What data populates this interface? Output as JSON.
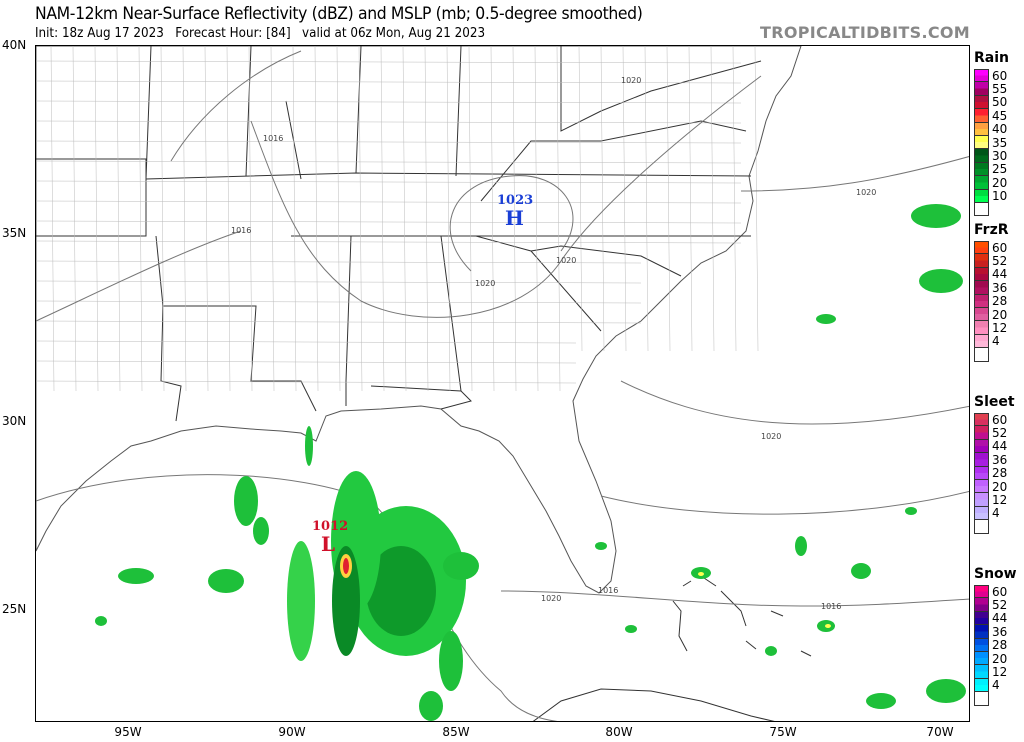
{
  "header": {
    "title": "NAM-12km Near-Surface Reflectivity (dBZ) and MSLP (mb; 0.5-degree smoothed)",
    "subtitle": "Init: 18z Aug 17 2023   Forecast Hour: [84]   valid at 06z Mon, Aug 21 2023",
    "watermark": "TROPICALTIDBITS.COM"
  },
  "axes": {
    "lat_labels": [
      "40N",
      "35N",
      "30N",
      "25N"
    ],
    "lon_labels": [
      "95W",
      "90W",
      "85W",
      "80W",
      "75W",
      "70W"
    ]
  },
  "pressure_centers": [
    {
      "type": "H",
      "value": "1023",
      "color": "#1a3fd6"
    },
    {
      "type": "L",
      "value": "1012",
      "color": "#d0102a"
    }
  ],
  "isobar_labels": [
    "1020",
    "1016",
    "1016",
    "1020",
    "1020",
    "1020",
    "1020",
    "1020",
    "1016",
    "1016"
  ],
  "legends": [
    {
      "name": "Rain",
      "labels": [
        "60",
        "55",
        "50",
        "45",
        "40",
        "35",
        "30",
        "25",
        "20",
        "10",
        ""
      ],
      "colors": [
        [
          "#ff00ff",
          "#e400d8"
        ],
        [
          "#c000a8",
          "#a00060"
        ],
        [
          "#b01040",
          "#d01030"
        ],
        [
          "#ff2030",
          "#ff6030"
        ],
        [
          "#ffa040",
          "#ffc040"
        ],
        [
          "#ffff50",
          "#ffff80"
        ],
        [
          "#005518",
          "#006a1c"
        ],
        [
          "#007a20",
          "#009028"
        ],
        [
          "#00a830",
          "#00c038"
        ],
        [
          "#00dd40",
          "#00ff50"
        ],
        [
          "#ffffff",
          "#ffffff"
        ]
      ]
    },
    {
      "name": "FrzR",
      "labels": [
        "60",
        "52",
        "44",
        "36",
        "28",
        "20",
        "12",
        "4",
        ""
      ],
      "colors": [
        [
          "#ff5000",
          "#ff4010"
        ],
        [
          "#e03010",
          "#c82020"
        ],
        [
          "#b81030",
          "#a80840"
        ],
        [
          "#a00a50",
          "#b01060"
        ],
        [
          "#c02070",
          "#d03080"
        ],
        [
          "#d84890",
          "#e060a0"
        ],
        [
          "#f080b0",
          "#ff90c0"
        ],
        [
          "#ffa8d0",
          "#ffb8d8"
        ],
        [
          "#ffffff",
          "#ffffff"
        ]
      ]
    },
    {
      "name": "Sleet",
      "labels": [
        "60",
        "52",
        "44",
        "36",
        "28",
        "20",
        "12",
        "4",
        ""
      ],
      "colors": [
        [
          "#e04050",
          "#d83060"
        ],
        [
          "#d02060",
          "#c01090"
        ],
        [
          "#b010a8",
          "#a000b8"
        ],
        [
          "#a010d0",
          "#a820e0"
        ],
        [
          "#b030f0",
          "#b848f8"
        ],
        [
          "#c060ff",
          "#c878ff"
        ],
        [
          "#c890ff",
          "#c0a0ff"
        ],
        [
          "#c0b0ff",
          "#c8c0ff"
        ],
        [
          "#ffffff",
          "#ffffff"
        ]
      ]
    },
    {
      "name": "Snow",
      "labels": [
        "60",
        "52",
        "44",
        "36",
        "28",
        "20",
        "12",
        "4",
        ""
      ],
      "colors": [
        [
          "#ff0080",
          "#e00090"
        ],
        [
          "#b00090",
          "#800088"
        ],
        [
          "#400090",
          "#2000a0"
        ],
        [
          "#0010b0",
          "#0030c0"
        ],
        [
          "#0050e0",
          "#0070f0"
        ],
        [
          "#0090ff",
          "#00a8ff"
        ],
        [
          "#00c0ff",
          "#00d8ff"
        ],
        [
          "#00f0ff",
          "#00ffff"
        ],
        [
          "#ffffff",
          "#ffffff"
        ]
      ]
    }
  ]
}
